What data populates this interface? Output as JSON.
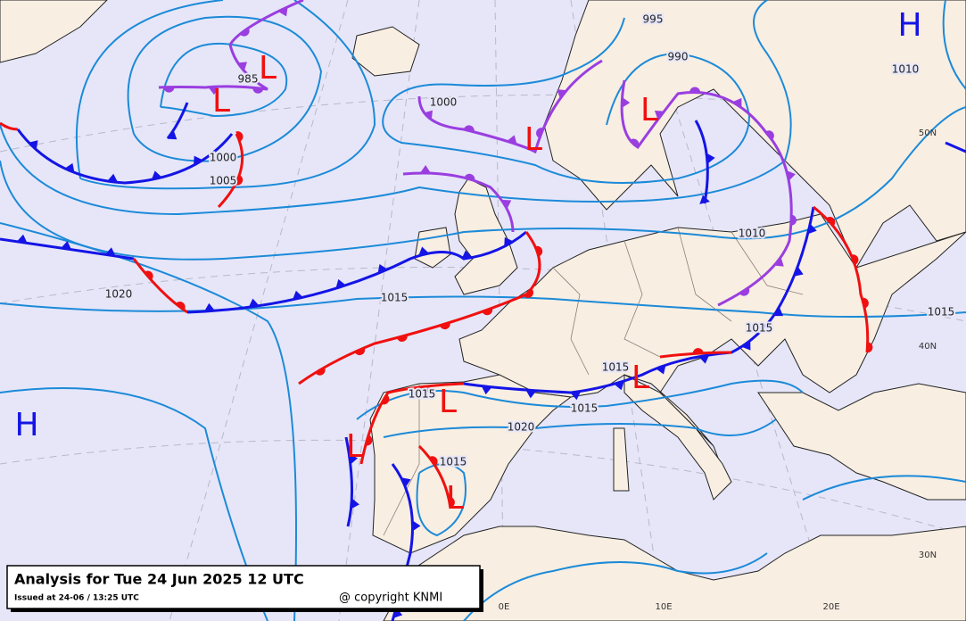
{
  "title": "Analysis for Tue 24 Jun 2025 12 UTC",
  "issued": "Issued at 24-06 / 13:25 UTC",
  "copyright": "@ copyright KNMI",
  "isobar_labels": [
    "995",
    "990",
    "1010",
    "985",
    "1000",
    "1000",
    "1005",
    "1010",
    "1020",
    "1015",
    "1015",
    "1015",
    "1015",
    "1015",
    "1015",
    "1020",
    "1015"
  ],
  "pressure_centers": [
    "H",
    "H",
    "L",
    "L",
    "L",
    "L",
    "L",
    "L",
    "L",
    "L"
  ],
  "graticule_labels": [
    "50N",
    "40N",
    "30N",
    "0E",
    "10E",
    "20E"
  ]
}
